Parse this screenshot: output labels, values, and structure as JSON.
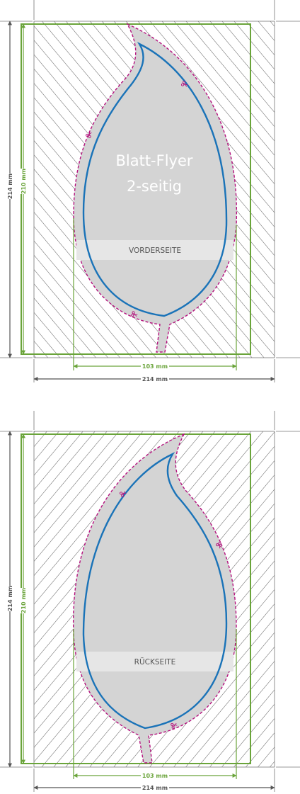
{
  "colors": {
    "trim": "#6aa43a",
    "cut": "#b5127e",
    "safe": "#1a73b8",
    "paper": "#d4d4d4",
    "band": "#e6e6e6",
    "dim_gray": "#555555",
    "hatch": "#4a4a4a"
  },
  "front": {
    "title_line1": "Blatt-Flyer",
    "title_line2": "2-seitig",
    "side_label": "VORDERSEITE",
    "dim_outer_vertical": "214 mm",
    "dim_trim_vertical": "210 mm",
    "dim_trim_horizontal": "103 mm",
    "dim_outer_horizontal": "214 mm"
  },
  "back": {
    "side_label": "RÜCKSEITE",
    "dim_outer_vertical": "214 mm",
    "dim_trim_vertical": "210 mm",
    "dim_trim_horizontal": "103 mm",
    "dim_outer_horizontal": "214 mm"
  },
  "icons": [
    "scissors-icon"
  ]
}
